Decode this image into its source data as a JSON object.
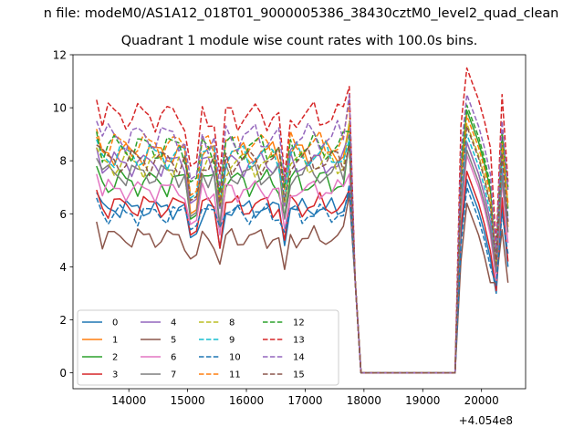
{
  "chart_data": {
    "type": "line",
    "suptitle": "n file: modeM0/AS1A12_018T01_9000005386_38430cztM0_level2_quad_clean",
    "title": "Quadrant 1 module wise count rates with 100.0s bins.",
    "xlabel": "",
    "ylabel": "",
    "x_offset_label": "+4.054e8",
    "xlim": [
      13050,
      20750
    ],
    "ylim": [
      -0.6,
      12
    ],
    "xticks": [
      14000,
      15000,
      16000,
      17000,
      18000,
      19000,
      20000
    ],
    "yticks": [
      0,
      2,
      4,
      6,
      8,
      10,
      12
    ],
    "grid": false,
    "legend_location": "lower-left",
    "legend_columns": 4,
    "segment_a_x": [
      13450,
      13550,
      13650,
      13750,
      13850,
      13950,
      14050,
      14150,
      14250,
      14350,
      14450,
      14550,
      14650,
      14750,
      14850,
      14950,
      15050,
      15150,
      15250,
      15350,
      15450,
      15550,
      15650,
      15750,
      15850,
      15950,
      16050,
      16150,
      16250,
      16350,
      16450,
      16550,
      16650,
      16750,
      16850,
      16950,
      17050,
      17150,
      17250,
      17350,
      17450,
      17550,
      17650,
      17750,
      17850,
      17950
    ],
    "segment_b_x": [
      19550,
      19650,
      19750,
      19850,
      19950,
      20050,
      20150,
      20250,
      20350,
      20450
    ],
    "series": [
      {
        "name": "0",
        "color": "#1f77b4",
        "style": "solid",
        "base": 6.2,
        "amp": 0.25,
        "phase": 0.3,
        "dips": [
          5.1,
          4.7,
          4.8,
          7.3,
          3.0,
          4.0
        ]
      },
      {
        "name": "1",
        "color": "#ff7f0e",
        "style": "solid",
        "base": 8.3,
        "amp": 0.35,
        "phase": 1.1,
        "dips": [
          6.0,
          6.4,
          6.3,
          8.7,
          4.3,
          5.5
        ]
      },
      {
        "name": "2",
        "color": "#2ca02c",
        "style": "solid",
        "base": 7.2,
        "amp": 0.4,
        "phase": 2.0,
        "dips": [
          5.8,
          5.5,
          5.9,
          9.9,
          4.0,
          6.2
        ]
      },
      {
        "name": "3",
        "color": "#d62728",
        "style": "solid",
        "base": 6.3,
        "amp": 0.35,
        "phase": 2.7,
        "dips": [
          5.2,
          4.7,
          5.0,
          7.6,
          3.1,
          4.2
        ]
      },
      {
        "name": "4",
        "color": "#9467bd",
        "style": "solid",
        "base": 7.9,
        "amp": 0.35,
        "phase": 3.4,
        "dips": [
          6.4,
          6.2,
          6.3,
          8.7,
          4.1,
          5.7
        ]
      },
      {
        "name": "5",
        "color": "#8c564b",
        "style": "solid",
        "base": 5.1,
        "amp": 0.3,
        "phase": 4.0,
        "dips": [
          4.3,
          4.1,
          3.9,
          6.4,
          3.4,
          3.4
        ]
      },
      {
        "name": "6",
        "color": "#e377c2",
        "style": "solid",
        "base": 6.9,
        "amp": 0.3,
        "phase": 4.6,
        "dips": [
          5.6,
          5.2,
          5.4,
          8.2,
          3.5,
          4.9
        ]
      },
      {
        "name": "7",
        "color": "#7f7f7f",
        "style": "solid",
        "base": 7.5,
        "amp": 0.35,
        "phase": 5.2,
        "dips": [
          5.9,
          5.6,
          5.8,
          8.4,
          3.8,
          5.3
        ]
      },
      {
        "name": "8",
        "color": "#bcbd22",
        "style": "dashed",
        "base": 7.9,
        "amp": 0.4,
        "phase": 0.8,
        "dips": [
          6.5,
          6.3,
          6.4,
          9.4,
          4.2,
          6.2
        ]
      },
      {
        "name": "9",
        "color": "#17becf",
        "style": "dashed",
        "base": 8.2,
        "amp": 0.4,
        "phase": 1.6,
        "dips": [
          6.6,
          6.5,
          6.6,
          9.0,
          4.3,
          5.9
        ]
      },
      {
        "name": "10",
        "color": "#1f77b4",
        "style": "dashed",
        "base": 6.0,
        "amp": 0.3,
        "phase": 2.3,
        "dips": [
          5.4,
          5.5,
          5.3,
          7.0,
          3.3,
          4.5
        ]
      },
      {
        "name": "11",
        "color": "#ff7f0e",
        "style": "dashed",
        "base": 8.6,
        "amp": 0.4,
        "phase": 3.0,
        "dips": [
          6.7,
          6.6,
          6.9,
          9.7,
          4.3,
          6.4
        ]
      },
      {
        "name": "12",
        "color": "#2ca02c",
        "style": "dashed",
        "base": 8.5,
        "amp": 0.45,
        "phase": 3.8,
        "dips": [
          7.2,
          6.8,
          7.0,
          10.1,
          4.6,
          7.0
        ]
      },
      {
        "name": "13",
        "color": "#d62728",
        "style": "dashed",
        "base": 9.7,
        "amp": 0.45,
        "phase": 4.4,
        "dips": [
          7.8,
          7.5,
          7.4,
          11.5,
          4.8,
          7.2
        ]
      },
      {
        "name": "14",
        "color": "#9467bd",
        "style": "dashed",
        "base": 8.9,
        "amp": 0.45,
        "phase": 5.0,
        "dips": [
          7.3,
          7.0,
          7.2,
          10.5,
          4.5,
          6.9
        ]
      },
      {
        "name": "15",
        "color": "#8c564b",
        "style": "dashed",
        "base": 8.0,
        "amp": 0.4,
        "phase": 5.7,
        "dips": [
          6.5,
          6.3,
          6.5,
          9.3,
          4.1,
          5.7
        ]
      }
    ]
  }
}
